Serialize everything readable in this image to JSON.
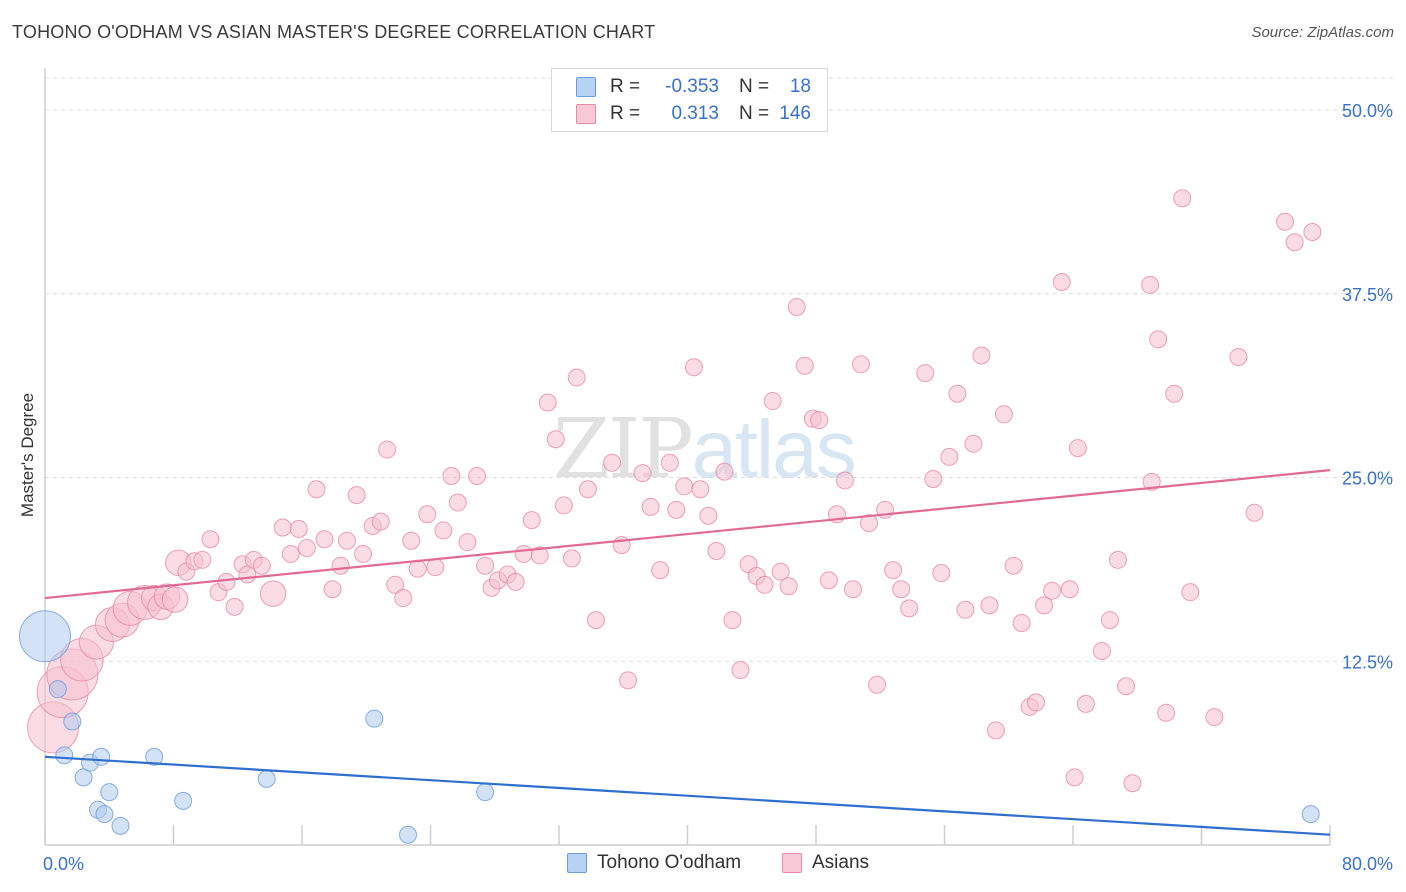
{
  "title": "TOHONO O'ODHAM VS ASIAN MASTER'S DEGREE CORRELATION CHART",
  "source": "Source: ZipAtlas.com",
  "watermark": {
    "part1": "ZIP",
    "part2": "atlas"
  },
  "colors": {
    "blue_fill": "#aecbf0",
    "blue_stroke": "#6d9bdc",
    "blue_line": "#2f6fd0",
    "pink_fill": "#f7bfd0",
    "pink_stroke": "#e98aa8",
    "pink_line": "#e26b95",
    "tick_label": "#3b72c9",
    "grid": "#dcdcdc"
  },
  "legend": {
    "rows": [
      {
        "r_label": "R =",
        "r_value": "-0.353",
        "n_label": "N =",
        "n_value": "18",
        "series": "blue"
      },
      {
        "r_label": "R =",
        "r_value": "0.313",
        "n_label": "N =",
        "n_value": "146",
        "series": "pink"
      }
    ]
  },
  "bottom_legend": {
    "blue": "Tohono O'odham",
    "pink": "Asians"
  },
  "chart_data": {
    "type": "scatter",
    "title": "TOHONO O'ODHAM VS ASIAN MASTER'S DEGREE CORRELATION CHART",
    "xlabel": "",
    "ylabel": "Master's Degree",
    "xlim": [
      0,
      80
    ],
    "ylim": [
      0,
      50
    ],
    "x_tick_labels": [
      "0.0%",
      "80.0%"
    ],
    "y_ticks": [
      12.5,
      25.0,
      37.5,
      50.0
    ],
    "y_tick_labels": [
      "12.5%",
      "25.0%",
      "37.5%",
      "50.0%"
    ],
    "grid": true,
    "legend_position": "top-center",
    "series": [
      {
        "name": "Tohono O'odham",
        "color": "blue",
        "trend": {
          "x0": 0,
          "y0": 6.0,
          "x1": 80,
          "y1": 0.7
        },
        "points": [
          [
            0.0,
            14.2,
            3
          ],
          [
            0.8,
            10.6,
            1
          ],
          [
            1.2,
            6.1,
            1
          ],
          [
            1.7,
            8.4,
            1
          ],
          [
            2.4,
            4.6,
            1
          ],
          [
            2.8,
            5.6,
            1
          ],
          [
            3.5,
            6.0,
            1
          ],
          [
            3.3,
            2.4,
            1
          ],
          [
            3.7,
            2.1,
            1
          ],
          [
            4.0,
            3.6,
            1
          ],
          [
            4.7,
            1.3,
            1
          ],
          [
            6.8,
            6.0,
            1
          ],
          [
            8.6,
            3.0,
            1
          ],
          [
            13.8,
            4.5,
            1
          ],
          [
            20.5,
            8.6,
            1
          ],
          [
            22.6,
            0.7,
            1
          ],
          [
            27.4,
            3.6,
            1
          ],
          [
            78.8,
            2.1,
            1
          ]
        ]
      },
      {
        "name": "Asians",
        "color": "pink",
        "trend": {
          "x0": 0,
          "y0": 16.8,
          "x1": 80,
          "y1": 25.5
        },
        "points": [
          [
            0.5,
            8.0,
            3
          ],
          [
            1.1,
            10.4,
            3
          ],
          [
            1.7,
            11.6,
            3
          ],
          [
            2.3,
            12.6,
            2.5
          ],
          [
            3.2,
            13.8,
            2
          ],
          [
            4.2,
            15.0,
            2
          ],
          [
            4.8,
            15.3,
            2
          ],
          [
            5.3,
            16.1,
            2
          ],
          [
            6.2,
            16.5,
            2
          ],
          [
            6.8,
            16.8,
            1.5
          ],
          [
            7.2,
            16.2,
            1.5
          ],
          [
            7.6,
            16.9,
            1.5
          ],
          [
            8.1,
            16.7,
            1.5
          ],
          [
            8.3,
            19.2,
            1.5
          ],
          [
            8.8,
            18.6,
            1
          ],
          [
            9.3,
            19.3,
            1
          ],
          [
            9.8,
            19.4,
            1
          ],
          [
            10.3,
            20.8,
            1
          ],
          [
            10.8,
            17.2,
            1
          ],
          [
            11.3,
            17.9,
            1
          ],
          [
            11.8,
            16.2,
            1
          ],
          [
            12.3,
            19.1,
            1
          ],
          [
            12.6,
            18.4,
            1
          ],
          [
            13.0,
            19.4,
            1
          ],
          [
            13.5,
            19.0,
            1
          ],
          [
            14.2,
            17.1,
            1.5
          ],
          [
            14.8,
            21.6,
            1
          ],
          [
            15.3,
            19.8,
            1
          ],
          [
            15.8,
            21.5,
            1
          ],
          [
            16.3,
            20.2,
            1
          ],
          [
            16.9,
            24.2,
            1
          ],
          [
            17.4,
            20.8,
            1
          ],
          [
            17.9,
            17.4,
            1
          ],
          [
            18.4,
            19.0,
            1
          ],
          [
            18.8,
            20.7,
            1
          ],
          [
            19.4,
            23.8,
            1
          ],
          [
            19.8,
            19.8,
            1
          ],
          [
            20.4,
            21.7,
            1
          ],
          [
            20.9,
            22.0,
            1
          ],
          [
            21.3,
            26.9,
            1
          ],
          [
            21.8,
            17.7,
            1
          ],
          [
            22.3,
            16.8,
            1
          ],
          [
            22.8,
            20.7,
            1
          ],
          [
            23.2,
            18.8,
            1
          ],
          [
            23.8,
            22.5,
            1
          ],
          [
            24.3,
            18.9,
            1
          ],
          [
            24.8,
            21.4,
            1
          ],
          [
            25.3,
            25.1,
            1
          ],
          [
            25.7,
            23.3,
            1
          ],
          [
            26.3,
            20.6,
            1
          ],
          [
            26.9,
            25.1,
            1
          ],
          [
            27.4,
            19.0,
            1
          ],
          [
            27.8,
            17.5,
            1
          ],
          [
            28.2,
            18.0,
            1
          ],
          [
            28.8,
            18.4,
            1
          ],
          [
            29.3,
            17.9,
            1
          ],
          [
            29.8,
            19.8,
            1
          ],
          [
            30.3,
            22.1,
            1
          ],
          [
            30.8,
            19.7,
            1
          ],
          [
            31.3,
            30.1,
            1
          ],
          [
            31.8,
            27.6,
            1
          ],
          [
            32.3,
            23.1,
            1
          ],
          [
            32.8,
            19.5,
            1
          ],
          [
            33.1,
            31.8,
            1
          ],
          [
            33.8,
            24.2,
            1
          ],
          [
            34.3,
            15.3,
            1
          ],
          [
            35.3,
            26.0,
            1
          ],
          [
            35.9,
            20.4,
            1
          ],
          [
            36.3,
            11.2,
            1
          ],
          [
            37.2,
            25.3,
            1
          ],
          [
            37.7,
            23.0,
            1
          ],
          [
            38.3,
            18.7,
            1
          ],
          [
            38.9,
            26.0,
            1
          ],
          [
            39.3,
            22.8,
            1
          ],
          [
            39.8,
            24.4,
            1
          ],
          [
            40.4,
            32.5,
            1
          ],
          [
            40.8,
            24.2,
            1
          ],
          [
            41.3,
            22.4,
            1
          ],
          [
            41.8,
            20.0,
            1
          ],
          [
            42.3,
            25.4,
            1
          ],
          [
            42.8,
            15.3,
            1
          ],
          [
            43.3,
            11.9,
            1
          ],
          [
            43.8,
            19.1,
            1
          ],
          [
            44.3,
            18.3,
            1
          ],
          [
            44.8,
            17.7,
            1
          ],
          [
            45.3,
            30.2,
            1
          ],
          [
            45.8,
            18.6,
            1
          ],
          [
            46.3,
            17.6,
            1
          ],
          [
            46.8,
            36.6,
            1
          ],
          [
            47.3,
            32.6,
            1
          ],
          [
            47.8,
            29.0,
            1
          ],
          [
            48.2,
            28.9,
            1
          ],
          [
            48.8,
            18.0,
            1
          ],
          [
            49.3,
            22.5,
            1
          ],
          [
            49.8,
            24.8,
            1
          ],
          [
            50.3,
            17.4,
            1
          ],
          [
            50.8,
            32.7,
            1
          ],
          [
            51.3,
            21.9,
            1
          ],
          [
            51.8,
            10.9,
            1
          ],
          [
            52.3,
            22.8,
            1
          ],
          [
            52.8,
            18.7,
            1
          ],
          [
            53.3,
            17.4,
            1
          ],
          [
            53.8,
            16.1,
            1
          ],
          [
            54.8,
            32.1,
            1
          ],
          [
            55.3,
            24.9,
            1
          ],
          [
            55.8,
            18.5,
            1
          ],
          [
            56.3,
            26.4,
            1
          ],
          [
            56.8,
            30.7,
            1
          ],
          [
            57.3,
            16.0,
            1
          ],
          [
            57.8,
            27.3,
            1
          ],
          [
            58.3,
            33.3,
            1
          ],
          [
            58.8,
            16.3,
            1
          ],
          [
            59.7,
            29.3,
            1
          ],
          [
            60.3,
            19.0,
            1
          ],
          [
            60.8,
            15.1,
            1
          ],
          [
            61.3,
            9.4,
            1
          ],
          [
            61.7,
            9.7,
            1
          ],
          [
            62.2,
            16.3,
            1
          ],
          [
            62.7,
            17.3,
            1
          ],
          [
            63.3,
            38.3,
            1
          ],
          [
            63.8,
            17.4,
            1
          ],
          [
            64.8,
            9.6,
            1
          ],
          [
            65.8,
            13.2,
            1
          ],
          [
            66.3,
            15.3,
            1
          ],
          [
            66.8,
            19.4,
            1
          ],
          [
            67.3,
            10.8,
            1
          ],
          [
            67.7,
            4.2,
            1
          ],
          [
            68.8,
            38.1,
            1
          ],
          [
            69.3,
            34.4,
            1
          ],
          [
            69.8,
            9.0,
            1
          ],
          [
            70.3,
            30.7,
            1
          ],
          [
            70.8,
            44.0,
            1
          ],
          [
            71.3,
            17.2,
            1
          ],
          [
            72.8,
            8.7,
            1
          ],
          [
            74.3,
            33.2,
            1
          ],
          [
            75.3,
            22.6,
            1
          ],
          [
            77.2,
            42.4,
            1
          ],
          [
            77.8,
            41.0,
            1
          ],
          [
            78.9,
            41.7,
            1
          ],
          [
            64.1,
            4.6,
            1
          ],
          [
            59.2,
            7.8,
            1
          ],
          [
            68.9,
            24.7,
            1
          ],
          [
            64.3,
            27.0,
            1
          ]
        ]
      }
    ]
  }
}
